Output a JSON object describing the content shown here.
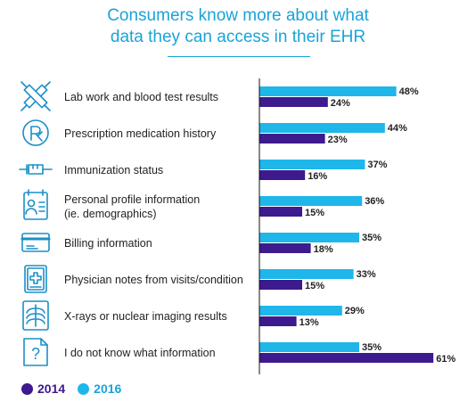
{
  "title_line1": "Consumers know more about what",
  "title_line2": "data they can access in their EHR",
  "colors": {
    "y2014": "#3d1a8e",
    "y2016": "#1fb6ea",
    "title": "#1aa3d9",
    "icon": "#1b8fc7"
  },
  "legend": [
    {
      "label": "2014",
      "color": "#3d1a8e"
    },
    {
      "label": "2016",
      "color": "#1fb6ea"
    }
  ],
  "chart_data": {
    "type": "bar",
    "orientation": "horizontal",
    "categories": [
      [
        "Lab work and blood test results"
      ],
      [
        "Prescription medication history"
      ],
      [
        "Immunization status"
      ],
      [
        "Personal profile information",
        "(ie. demographics)"
      ],
      [
        "Billing information"
      ],
      [
        "Physician notes from visits/condition"
      ],
      [
        "X-rays or nuclear imaging results"
      ],
      [
        "I do not know what information"
      ]
    ],
    "icons": [
      "syringe-test-tube-icon",
      "prescription-icon",
      "vaccine-syringe-icon",
      "profile-card-icon",
      "credit-card-icon",
      "medical-notes-icon",
      "xray-ribcage-icon",
      "question-box-icon"
    ],
    "series": [
      {
        "name": "2016",
        "values": [
          48,
          44,
          37,
          36,
          35,
          33,
          29,
          35
        ]
      },
      {
        "name": "2014",
        "values": [
          24,
          23,
          16,
          15,
          18,
          15,
          13,
          61
        ]
      }
    ],
    "value_suffix": "%",
    "xlim": [
      0,
      70
    ],
    "grid": false,
    "legend_position": "bottom-left"
  }
}
